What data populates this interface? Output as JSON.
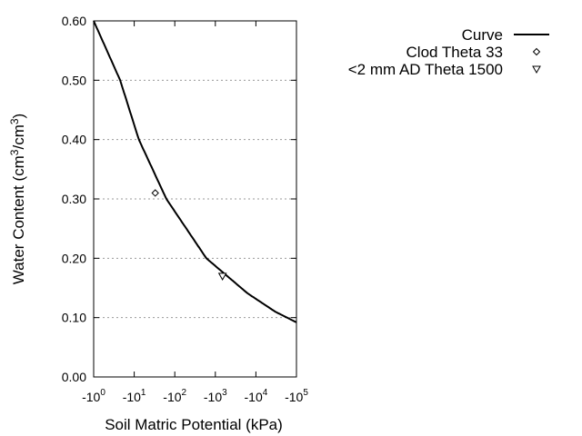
{
  "chart_data": {
    "type": "line",
    "xlabel": "Soil Matric Potential (kPa)",
    "ylabel": "Water Content (cm3/cm3)",
    "ylabel_parts": {
      "a": "Water Content (cm",
      "sup1": "3",
      "b": "/cm",
      "sup2": "3",
      "c": ")"
    },
    "x_scale": "log",
    "xlim": [
      1,
      100000
    ],
    "ylim": [
      0,
      0.6
    ],
    "x_ticks": [
      {
        "base": "-10",
        "exp": "0",
        "value": 1
      },
      {
        "base": "-10",
        "exp": "1",
        "value": 10
      },
      {
        "base": "-10",
        "exp": "2",
        "value": 100
      },
      {
        "base": "-10",
        "exp": "3",
        "value": 1000
      },
      {
        "base": "-10",
        "exp": "4",
        "value": 10000
      },
      {
        "base": "-10",
        "exp": "5",
        "value": 100000
      }
    ],
    "y_ticks": [
      "0.00",
      "0.10",
      "0.20",
      "0.30",
      "0.40",
      "0.50",
      "0.60"
    ],
    "y_tick_values": [
      0,
      0.1,
      0.2,
      0.3,
      0.4,
      0.5,
      0.6
    ],
    "grid": "horizontal dotted",
    "legend_position": "top-right, outside plot",
    "series": [
      {
        "name": "Curve",
        "kind": "line",
        "x": [
          1,
          4.5,
          13,
          62,
          600,
          6200,
          30000,
          100000
        ],
        "y": [
          0.6,
          0.5,
          0.4,
          0.3,
          0.2,
          0.141,
          0.11,
          0.092
        ]
      },
      {
        "name": "Clod Theta 33",
        "kind": "point",
        "marker": "diamond",
        "x": [
          33
        ],
        "y": [
          0.31
        ]
      },
      {
        "name": "<2 mm AD Theta 1500",
        "kind": "point",
        "marker": "triangle-down",
        "x": [
          1500
        ],
        "y": [
          0.17
        ]
      }
    ]
  }
}
